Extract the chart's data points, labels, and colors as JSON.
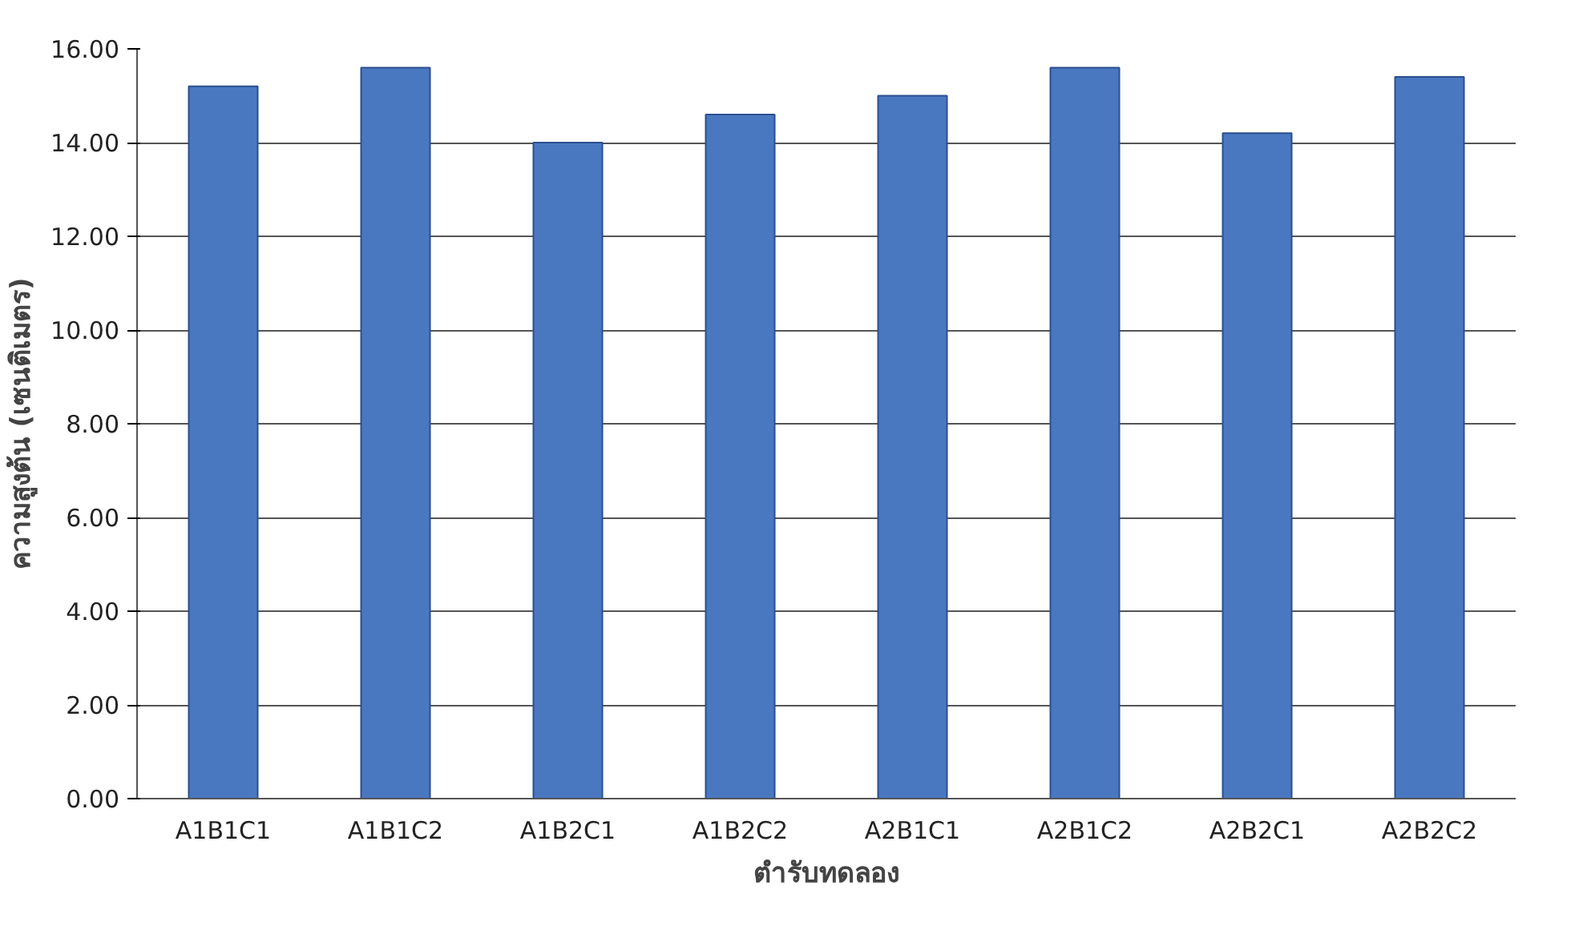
{
  "chart_data": {
    "type": "bar",
    "xlabel": "ตำรับทดลอง",
    "ylabel": "ความสูงต้น (เซนติเมตร)",
    "categories": [
      "A1B1C1",
      "A1B1C2",
      "A1B2C1",
      "A1B2C2",
      "A2B1C1",
      "A2B1C2",
      "A2B2C1",
      "A2B2C2"
    ],
    "values": [
      15.2,
      15.6,
      14.0,
      14.6,
      15.0,
      15.6,
      14.2,
      15.4
    ],
    "color": "#4a78c0",
    "ylim": [
      0,
      16
    ],
    "yticks": [
      {
        "value": 0,
        "label": "0.00"
      },
      {
        "value": 2,
        "label": "2.00"
      },
      {
        "value": 4,
        "label": "4.00"
      },
      {
        "value": 6,
        "label": "6.00"
      },
      {
        "value": 8,
        "label": "8.00"
      },
      {
        "value": 10,
        "label": "10.00"
      },
      {
        "value": 12,
        "label": "12.00"
      },
      {
        "value": 14,
        "label": "14.00"
      },
      {
        "value": 16,
        "label": "16.00"
      }
    ],
    "grid": "y"
  }
}
